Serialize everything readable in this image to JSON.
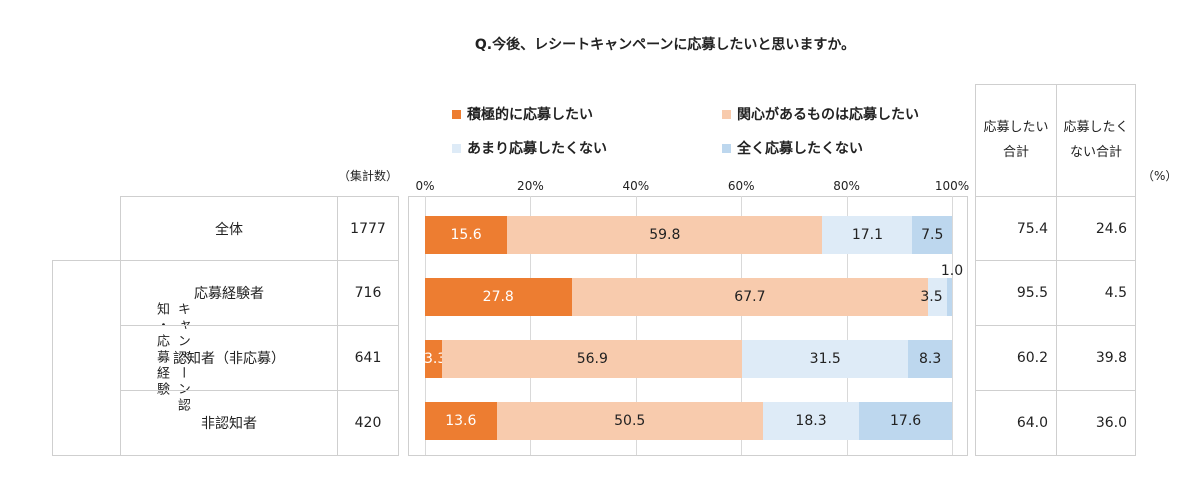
{
  "title": "Q.今後、レシートキャンペーンに応募したいと思いますか。",
  "unit_label": "（集計数）",
  "percent_label": "（%）",
  "col_headers": {
    "want": "応募したい\n合計",
    "notwant": "応募したく\nない合計"
  },
  "group_label_left": "知・応募経験",
  "group_label_right": "キャンペーン認",
  "colors": {
    "s1": "#ED7D31",
    "s2": "#F8CBAD",
    "s3": "#DEEBF7",
    "s4": "#BDD7EE"
  },
  "chart_data": {
    "type": "bar",
    "orientation": "horizontal-stacked-100",
    "title": "Q.今後、レシートキャンペーンに応募したいと思いますか。",
    "categories": [
      "全体",
      "応募経験者",
      "認知者（非応募）",
      "非認知者"
    ],
    "counts": [
      "1777",
      "716",
      "641",
      "420"
    ],
    "x_ticks": [
      "0%",
      "20%",
      "40%",
      "60%",
      "80%",
      "100%"
    ],
    "xlim": [
      0,
      100
    ],
    "series": [
      {
        "name": "積極的に応募したい",
        "values": [
          15.6,
          27.8,
          3.3,
          13.6
        ],
        "labels": [
          "15.6",
          "27.8",
          "3.3",
          "13.6"
        ]
      },
      {
        "name": "関心があるものは応募したい",
        "values": [
          59.8,
          67.7,
          56.9,
          50.5
        ],
        "labels": [
          "59.8",
          "67.7",
          "56.9",
          "50.5"
        ]
      },
      {
        "name": "あまり応募したくない",
        "values": [
          17.1,
          3.5,
          31.5,
          18.3
        ],
        "labels": [
          "17.1",
          "3.5",
          "31.5",
          "18.3"
        ]
      },
      {
        "name": "全く応募したくない",
        "values": [
          7.5,
          1.0,
          8.3,
          17.6
        ],
        "labels": [
          "7.5",
          "1.0",
          "8.3",
          "17.6"
        ]
      }
    ],
    "totals_want": [
      "75.4",
      "95.5",
      "60.2",
      "64.0"
    ],
    "totals_notwant": [
      "24.6",
      "4.5",
      "39.8",
      "36.0"
    ]
  }
}
